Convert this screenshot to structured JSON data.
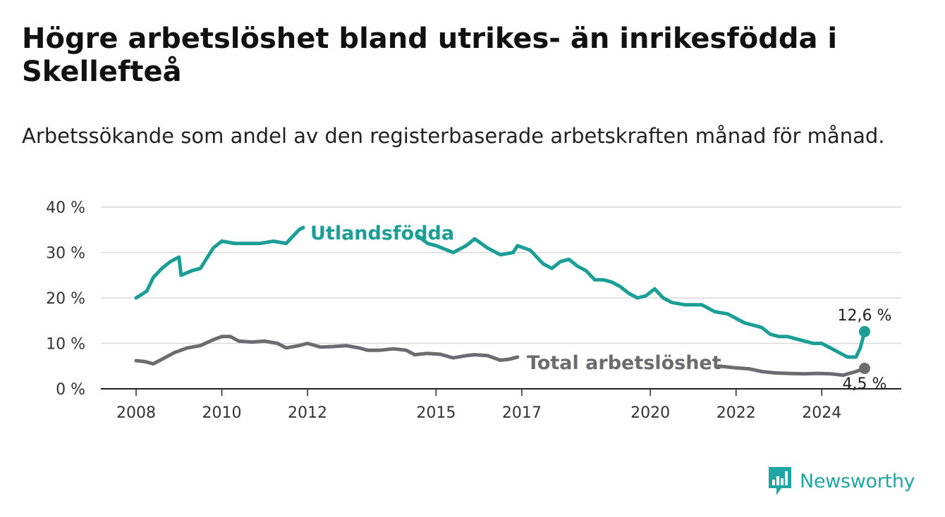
{
  "title": "Högre arbetslöshet bland utrikes- än inrikesfödda i Skellefteå",
  "subtitle": "Arbetssökande som andel av den registerbaserade arbetskraften månad för månad.",
  "brand": {
    "name": "Newsworthy",
    "logo_icon": "bar-chart-bubble-icon"
  },
  "chart_data": {
    "type": "line",
    "title": "Högre arbetslöshet bland utrikes- än inrikesfödda i Skellefteå",
    "subtitle": "Arbetssökande som andel av den registerbaserade arbetskraften månad för månad.",
    "xlabel": "",
    "ylabel": "",
    "x_ticks": [
      2008,
      2010,
      2012,
      2015,
      2017,
      2020,
      2022,
      2024
    ],
    "y_ticks": [
      0,
      10,
      20,
      30,
      40
    ],
    "y_tick_labels": [
      "0 %",
      "10 %",
      "20 %",
      "30 %",
      "40 %"
    ],
    "xlim": [
      2007.5,
      2025.8
    ],
    "ylim": [
      0,
      40
    ],
    "grid": "horizontal",
    "legend": "none",
    "series": [
      {
        "name": "Utlandsfödda",
        "color": "#1a9e96",
        "end_label": "12,6 %",
        "end_value": 12.6,
        "points": [
          [
            2008.0,
            20.0
          ],
          [
            2008.25,
            21.5
          ],
          [
            2008.4,
            24.5
          ],
          [
            2008.6,
            26.5
          ],
          [
            2008.8,
            28.0
          ],
          [
            2009.0,
            29.0
          ],
          [
            2009.05,
            25.0
          ],
          [
            2009.3,
            26.0
          ],
          [
            2009.5,
            26.5
          ],
          [
            2009.8,
            31.0
          ],
          [
            2010.0,
            32.5
          ],
          [
            2010.3,
            32.0
          ],
          [
            2010.6,
            32.0
          ],
          [
            2010.9,
            32.0
          ],
          [
            2011.2,
            32.5
          ],
          [
            2011.5,
            32.0
          ],
          [
            2011.8,
            35.0
          ],
          [
            2011.9,
            35.5
          ],
          [
            2012.2,
            null
          ],
          [
            2014.6,
            33.5
          ],
          [
            2014.8,
            32.0
          ],
          [
            2015.0,
            31.5
          ],
          [
            2015.4,
            30.0
          ],
          [
            2015.7,
            31.5
          ],
          [
            2015.9,
            33.0
          ],
          [
            2016.2,
            31.0
          ],
          [
            2016.5,
            29.5
          ],
          [
            2016.8,
            30.0
          ],
          [
            2016.9,
            31.5
          ],
          [
            2017.2,
            30.5
          ],
          [
            2017.5,
            27.5
          ],
          [
            2017.7,
            26.5
          ],
          [
            2017.9,
            28.0
          ],
          [
            2018.1,
            28.5
          ],
          [
            2018.3,
            27.0
          ],
          [
            2018.5,
            26.0
          ],
          [
            2018.7,
            24.0
          ],
          [
            2018.9,
            24.0
          ],
          [
            2019.1,
            23.5
          ],
          [
            2019.3,
            22.5
          ],
          [
            2019.5,
            21.0
          ],
          [
            2019.7,
            20.0
          ],
          [
            2019.9,
            20.5
          ],
          [
            2020.1,
            22.0
          ],
          [
            2020.3,
            20.0
          ],
          [
            2020.5,
            19.0
          ],
          [
            2020.8,
            18.5
          ],
          [
            2021.2,
            18.5
          ],
          [
            2021.5,
            17.0
          ],
          [
            2021.8,
            16.5
          ],
          [
            2022.0,
            15.5
          ],
          [
            2022.2,
            14.5
          ],
          [
            2022.4,
            14.0
          ],
          [
            2022.6,
            13.5
          ],
          [
            2022.8,
            12.0
          ],
          [
            2023.0,
            11.5
          ],
          [
            2023.2,
            11.5
          ],
          [
            2023.4,
            11.0
          ],
          [
            2023.6,
            10.5
          ],
          [
            2023.8,
            10.0
          ],
          [
            2024.0,
            10.0
          ],
          [
            2024.2,
            9.0
          ],
          [
            2024.4,
            8.0
          ],
          [
            2024.6,
            7.0
          ],
          [
            2024.8,
            7.0
          ],
          [
            2024.9,
            9.0
          ],
          [
            2025.0,
            12.6
          ]
        ]
      },
      {
        "name": "Total arbetslöshet",
        "color": "#6b6b70",
        "end_label": "4,5 %",
        "end_value": 4.5,
        "points": [
          [
            2008.0,
            6.2
          ],
          [
            2008.2,
            6.0
          ],
          [
            2008.4,
            5.5
          ],
          [
            2008.6,
            6.5
          ],
          [
            2008.9,
            8.0
          ],
          [
            2009.2,
            9.0
          ],
          [
            2009.5,
            9.5
          ],
          [
            2009.8,
            10.8
          ],
          [
            2010.0,
            11.5
          ],
          [
            2010.2,
            11.5
          ],
          [
            2010.4,
            10.5
          ],
          [
            2010.7,
            10.3
          ],
          [
            2011.0,
            10.5
          ],
          [
            2011.3,
            10.0
          ],
          [
            2011.5,
            9.0
          ],
          [
            2011.8,
            9.5
          ],
          [
            2012.0,
            10.0
          ],
          [
            2012.3,
            9.2
          ],
          [
            2012.6,
            9.3
          ],
          [
            2012.9,
            9.5
          ],
          [
            2013.2,
            9.0
          ],
          [
            2013.4,
            8.5
          ],
          [
            2013.7,
            8.5
          ],
          [
            2014.0,
            8.8
          ],
          [
            2014.3,
            8.5
          ],
          [
            2014.5,
            7.5
          ],
          [
            2014.8,
            7.8
          ],
          [
            2015.1,
            7.6
          ],
          [
            2015.4,
            6.8
          ],
          [
            2015.7,
            7.3
          ],
          [
            2015.9,
            7.5
          ],
          [
            2016.2,
            7.3
          ],
          [
            2016.5,
            6.3
          ],
          [
            2016.7,
            6.5
          ],
          [
            2016.9,
            7.0
          ],
          [
            2017.2,
            null
          ],
          [
            2021.6,
            5.0
          ],
          [
            2021.8,
            4.8
          ],
          [
            2022.0,
            4.6
          ],
          [
            2022.3,
            4.4
          ],
          [
            2022.6,
            3.8
          ],
          [
            2022.9,
            3.5
          ],
          [
            2023.2,
            3.4
          ],
          [
            2023.6,
            3.3
          ],
          [
            2023.9,
            3.4
          ],
          [
            2024.2,
            3.3
          ],
          [
            2024.5,
            3.0
          ],
          [
            2024.8,
            3.8
          ],
          [
            2025.0,
            4.5
          ]
        ]
      }
    ]
  }
}
